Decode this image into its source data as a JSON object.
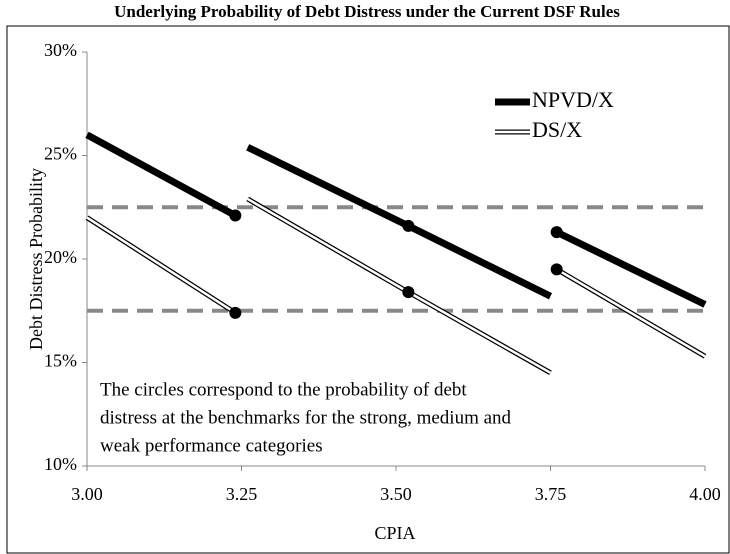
{
  "chart_data": {
    "type": "line",
    "title": "Underlying Probability of Debt Distress under the Current DSF Rules",
    "x_label": "CPIA",
    "y_label": "Debt Distress Probability",
    "xlim": [
      3.0,
      4.0
    ],
    "xticks": [
      {
        "value": 3.0,
        "label": "3.00"
      },
      {
        "value": 3.25,
        "label": "3.25"
      },
      {
        "value": 3.5,
        "label": "3.50"
      },
      {
        "value": 3.75,
        "label": "3.75"
      },
      {
        "value": 4.0,
        "label": "4.00"
      }
    ],
    "ylim": [
      10,
      30
    ],
    "yticks": [
      {
        "value": 10,
        "label": "10%"
      },
      {
        "value": 15,
        "label": "15%"
      },
      {
        "value": 20,
        "label": "20%"
      },
      {
        "value": 25,
        "label": "25%"
      },
      {
        "value": 30,
        "label": "30%"
      }
    ],
    "reference_lines": [
      22.5,
      17.5
    ],
    "series": [
      {
        "name": "NPVD/X",
        "color": "#000000",
        "style": "thick",
        "x": [
          3.0,
          3.24,
          null,
          3.26,
          3.52,
          3.75,
          null,
          3.76,
          4.0
        ],
        "values": [
          26.0,
          22.1,
          null,
          25.4,
          21.6,
          18.2,
          null,
          21.3,
          17.8
        ],
        "markers": [
          false,
          true,
          false,
          false,
          true,
          false,
          false,
          true,
          false
        ]
      },
      {
        "name": "DS/X",
        "color": "#000000",
        "style": "double",
        "x": [
          3.0,
          3.24,
          null,
          3.26,
          3.52,
          3.75,
          null,
          3.76,
          4.0
        ],
        "values": [
          22.0,
          17.4,
          null,
          22.9,
          18.4,
          14.5,
          null,
          19.5,
          15.3
        ],
        "markers": [
          false,
          true,
          false,
          false,
          true,
          false,
          false,
          true,
          false
        ]
      }
    ],
    "annotation": [
      "The circles correspond to the probability of debt",
      "distress at the benchmarks for the strong, medium and",
      "weak performance categories"
    ]
  }
}
